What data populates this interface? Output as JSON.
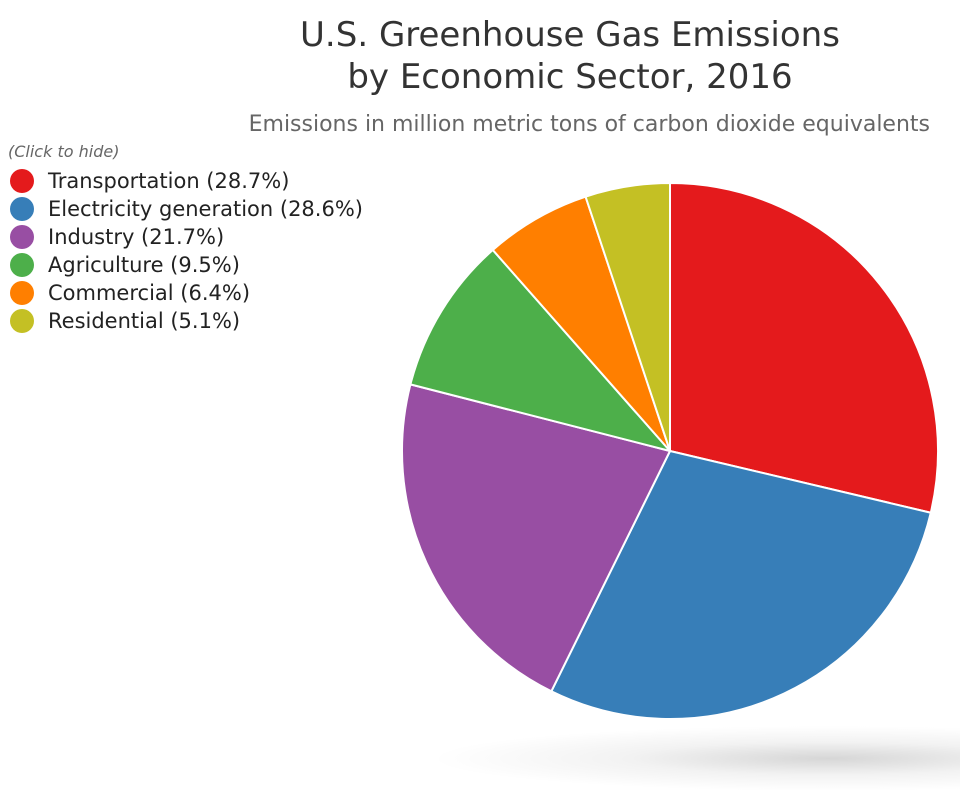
{
  "chart_data": {
    "type": "pie",
    "title_lines": [
      "U.S. Greenhouse Gas Emissions",
      "by Economic Sector, 2016"
    ],
    "subtitle": "Emissions in million metric tons of carbon dioxide equivalents",
    "legend_hint": "(Click to hide)",
    "legend_position": "top-left",
    "slices": [
      {
        "name": "Transportation",
        "value": 28.7,
        "label": "Transportation (28.7%)",
        "color": "#e41a1c"
      },
      {
        "name": "Electricity generation",
        "value": 28.6,
        "label": "Electricity generation (28.6%)",
        "color": "#377eb8"
      },
      {
        "name": "Industry",
        "value": 21.7,
        "label": "Industry (21.7%)",
        "color": "#984ea3"
      },
      {
        "name": "Agriculture",
        "value": 9.5,
        "label": "Agriculture (9.5%)",
        "color": "#4daf4a"
      },
      {
        "name": "Commercial",
        "value": 6.4,
        "label": "Commercial (6.4%)",
        "color": "#ff7f00"
      },
      {
        "name": "Residential",
        "value": 5.1,
        "label": "Residential (5.1%)",
        "color": "#c4c024"
      }
    ]
  }
}
